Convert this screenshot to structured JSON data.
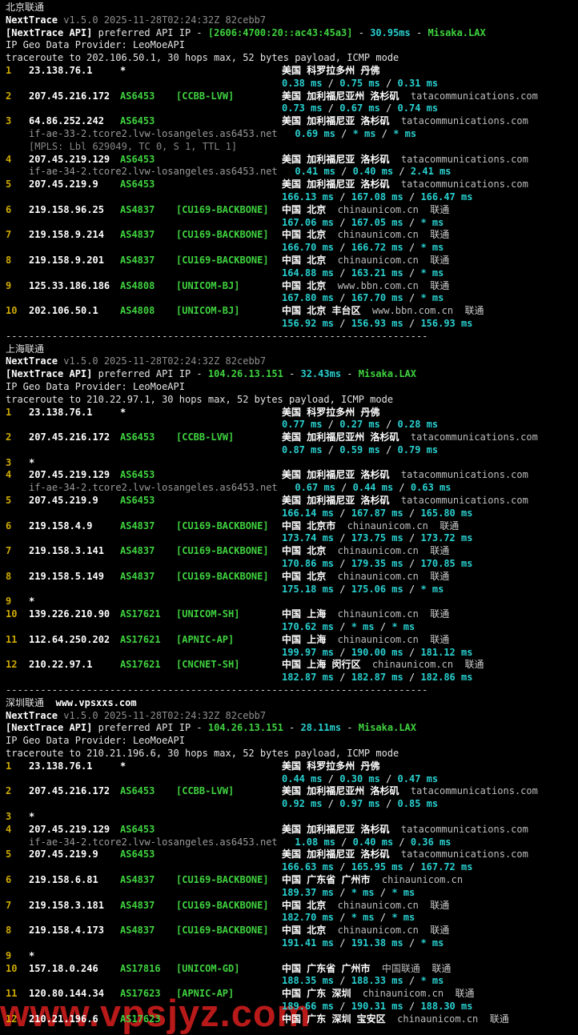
{
  "watermark": {
    "text": "www.vpsjyz.com",
    "color": "#d21d1d"
  },
  "chrome": {
    "separator": "-------------------------------------------------------------------------",
    "background": "#000000"
  },
  "palette": {
    "hop_number_yellow": "#cfaa00",
    "asn_green": "#3fd23f",
    "rtt_cyan": "#29cfcf",
    "text_white": "#ffffff",
    "muted_gray": "#8f8f8f"
  },
  "sections": [
    {
      "title": "北京联通",
      "site": "",
      "app": "NextTrace",
      "version": "v1.5.0 2025-11-28T02:24:32Z 82cebb7",
      "api_tag": "[NextTrace API]",
      "api_text": "preferred API IP",
      "api_ip": "[2606:4700:20::ac43:45a3]",
      "api_latency": "30.95ms",
      "api_node": "Misaka.LAX",
      "geo_provider": "IP Geo Data Provider: LeoMoeAPI",
      "trace": "traceroute to 202.106.50.1, 30 hops max, 52 bytes payload, ICMP mode",
      "separator_after": true,
      "hops": [
        {
          "n": "1",
          "ip": "23.138.76.1",
          "star": true,
          "geo": "美国 科罗拉多州 丹佛",
          "rtt": [
            "0.38 ms",
            "0.75 ms",
            "0.31 ms"
          ]
        },
        {
          "n": "2",
          "ip": "207.45.216.172",
          "as": "AS6453",
          "label": "[CCBB-LVW]",
          "geo": "美国 加利福尼亚州 洛杉矶",
          "host": "tatacommunications.com",
          "rtt": [
            "0.73 ms",
            "0.67 ms",
            "0.74 ms"
          ]
        },
        {
          "n": "3",
          "ip": "64.86.252.242",
          "as": "AS6453",
          "geo": "美国 加利福尼亚 洛杉矶",
          "host": "tatacommunications.com",
          "rdns": "if-ae-33-2.tcore2.lvw-losangeles.as6453.net",
          "rtt": [
            "0.69 ms",
            "* ms",
            "* ms"
          ],
          "mpls": "[MPLS: Lbl 629049, TC 0, S 1, TTL 1]"
        },
        {
          "n": "4",
          "ip": "207.45.219.129",
          "as": "AS6453",
          "geo": "美国 加利福尼亚 洛杉矶",
          "host": "tatacommunications.com",
          "rdns": "if-ae-34-2.tcore2.lvw-losangeles.as6453.net",
          "rtt": [
            "0.41 ms",
            "0.40 ms",
            "2.41 ms"
          ]
        },
        {
          "n": "5",
          "ip": "207.45.219.9",
          "as": "AS6453",
          "geo": "美国 加利福尼亚 洛杉矶",
          "host": "tatacommunications.com",
          "rtt": [
            "166.13 ms",
            "167.08 ms",
            "166.47 ms"
          ]
        },
        {
          "n": "6",
          "ip": "219.158.96.25",
          "as": "AS4837",
          "label": "[CU169-BACKBONE]",
          "geo": "中国 北京",
          "host": "chinaunicom.cn",
          "isp": "联通",
          "rtt": [
            "167.06 ms",
            "167.05 ms",
            "* ms"
          ]
        },
        {
          "n": "7",
          "ip": "219.158.9.214",
          "as": "AS4837",
          "label": "[CU169-BACKBONE]",
          "geo": "中国 北京",
          "host": "chinaunicom.cn",
          "isp": "联通",
          "rtt": [
            "166.70 ms",
            "166.72 ms",
            "* ms"
          ]
        },
        {
          "n": "8",
          "ip": "219.158.9.201",
          "as": "AS4837",
          "label": "[CU169-BACKBONE]",
          "geo": "中国 北京",
          "host": "chinaunicom.cn",
          "isp": "联通",
          "rtt": [
            "164.88 ms",
            "163.21 ms",
            "* ms"
          ]
        },
        {
          "n": "9",
          "ip": "125.33.186.186",
          "as": "AS4808",
          "label": "[UNICOM-BJ]",
          "geo": "中国 北京",
          "host": "www.bbn.com.cn",
          "isp": "联通",
          "rtt": [
            "167.80 ms",
            "167.70 ms",
            "* ms"
          ]
        },
        {
          "n": "10",
          "ip": "202.106.50.1",
          "as": "AS4808",
          "label": "[UNICOM-BJ]",
          "geo": "中国 北京 丰台区",
          "host": "www.bbn.com.cn",
          "isp": "联通",
          "rtt": [
            "156.92 ms",
            "156.93 ms",
            "156.93 ms"
          ]
        }
      ]
    },
    {
      "title": "上海联通",
      "site": "",
      "app": "NextTrace",
      "version": "v1.5.0 2025-11-28T02:24:32Z 82cebb7",
      "api_tag": "[NextTrace API]",
      "api_text": "preferred API IP",
      "api_ip": "104.26.13.151",
      "api_latency": "32.43ms",
      "api_node": "Misaka.LAX",
      "geo_provider": "IP Geo Data Provider: LeoMoeAPI",
      "trace": "traceroute to 210.22.97.1, 30 hops max, 52 bytes payload, ICMP mode",
      "separator_after": true,
      "hops": [
        {
          "n": "1",
          "ip": "23.138.76.1",
          "star": true,
          "geo": "美国 科罗拉多州 丹佛",
          "rtt": [
            "0.77 ms",
            "0.27 ms",
            "0.28 ms"
          ]
        },
        {
          "n": "2",
          "ip": "207.45.216.172",
          "as": "AS6453",
          "label": "[CCBB-LVW]",
          "geo": "美国 加利福尼亚州 洛杉矶",
          "host": "tatacommunications.com",
          "rtt": [
            "0.87 ms",
            "0.59 ms",
            "0.79 ms"
          ]
        },
        {
          "n": "3",
          "star_only": true
        },
        {
          "n": "4",
          "ip": "207.45.219.129",
          "as": "AS6453",
          "geo": "美国 加利福尼亚 洛杉矶",
          "host": "tatacommunications.com",
          "rdns": "if-ae-34-2.tcore2.lvw-losangeles.as6453.net",
          "rtt": [
            "0.67 ms",
            "0.44 ms",
            "0.63 ms"
          ]
        },
        {
          "n": "5",
          "ip": "207.45.219.9",
          "as": "AS6453",
          "geo": "美国 加利福尼亚 洛杉矶",
          "host": "tatacommunications.com",
          "rtt": [
            "166.14 ms",
            "167.87 ms",
            "165.80 ms"
          ]
        },
        {
          "n": "6",
          "ip": "219.158.4.9",
          "as": "AS4837",
          "label": "[CU169-BACKBONE]",
          "geo": "中国 北京市",
          "host": "chinaunicom.cn",
          "isp": "联通",
          "rtt": [
            "173.74 ms",
            "173.75 ms",
            "173.72 ms"
          ]
        },
        {
          "n": "7",
          "ip": "219.158.3.141",
          "as": "AS4837",
          "label": "[CU169-BACKBONE]",
          "geo": "中国 北京",
          "host": "chinaunicom.cn",
          "isp": "联通",
          "rtt": [
            "170.86 ms",
            "179.35 ms",
            "170.85 ms"
          ]
        },
        {
          "n": "8",
          "ip": "219.158.5.149",
          "as": "AS4837",
          "label": "[CU169-BACKBONE]",
          "geo": "中国 北京",
          "host": "chinaunicom.cn",
          "isp": "联通",
          "rtt": [
            "175.18 ms",
            "175.06 ms",
            "* ms"
          ]
        },
        {
          "n": "9",
          "star_only": true
        },
        {
          "n": "10",
          "ip": "139.226.210.90",
          "as": "AS17621",
          "label": "[UNICOM-SH]",
          "geo": "中国 上海",
          "host": "chinaunicom.cn",
          "isp": "联通",
          "rtt": [
            "170.62 ms",
            "* ms",
            "* ms"
          ]
        },
        {
          "n": "11",
          "ip": "112.64.250.202",
          "as": "AS17621",
          "label": "[APNIC-AP]",
          "geo": "中国 上海",
          "host": "chinaunicom.cn",
          "isp": "联通",
          "rtt": [
            "199.97 ms",
            "190.00 ms",
            "181.12 ms"
          ]
        },
        {
          "n": "12",
          "ip": "210.22.97.1",
          "as": "AS17621",
          "label": "[CNCNET-SH]",
          "geo": "中国 上海 闵行区",
          "host": "chinaunicom.cn",
          "isp": "联通",
          "rtt": [
            "182.87 ms",
            "182.87 ms",
            "182.86 ms"
          ]
        }
      ]
    },
    {
      "title": "深圳联通",
      "site": "www.vpsxxs.com",
      "app": "NextTrace",
      "version": "v1.5.0 2025-11-28T02:24:32Z 82cebb7",
      "api_tag": "[NextTrace API]",
      "api_text": "preferred API IP",
      "api_ip": "104.26.13.151",
      "api_latency": "28.11ms",
      "api_node": "Misaka.LAX",
      "geo_provider": "IP Geo Data Provider: LeoMoeAPI",
      "trace": "traceroute to 210.21.196.6, 30 hops max, 52 bytes payload, ICMP mode",
      "separator_after": false,
      "hops": [
        {
          "n": "1",
          "ip": "23.138.76.1",
          "star": true,
          "geo": "美国 科罗拉多州 丹佛",
          "rtt": [
            "0.44 ms",
            "0.30 ms",
            "0.47 ms"
          ]
        },
        {
          "n": "2",
          "ip": "207.45.216.172",
          "as": "AS6453",
          "label": "[CCBB-LVW]",
          "geo": "美国 加利福尼亚州 洛杉矶",
          "host": "tatacommunications.com",
          "rtt": [
            "0.92 ms",
            "0.97 ms",
            "0.85 ms"
          ]
        },
        {
          "n": "3",
          "star_only": true
        },
        {
          "n": "4",
          "ip": "207.45.219.129",
          "as": "AS6453",
          "geo": "美国 加利福尼亚 洛杉矶",
          "host": "tatacommunications.com",
          "rdns": "if-ae-34-2.tcore2.lvw-losangeles.as6453.net",
          "rtt": [
            "1.08 ms",
            "0.40 ms",
            "0.36 ms"
          ]
        },
        {
          "n": "5",
          "ip": "207.45.219.9",
          "as": "AS6453",
          "geo": "美国 加利福尼亚 洛杉矶",
          "host": "tatacommunications.com",
          "rtt": [
            "166.63 ms",
            "165.95 ms",
            "167.72 ms"
          ]
        },
        {
          "n": "6",
          "ip": "219.158.6.81",
          "as": "AS4837",
          "label": "[CU169-BACKBONE]",
          "geo": "中国 广东省 广州市",
          "host": "chinaunicom.cn",
          "rtt": [
            "189.37 ms",
            "* ms",
            "* ms"
          ]
        },
        {
          "n": "7",
          "ip": "219.158.3.181",
          "as": "AS4837",
          "label": "[CU169-BACKBONE]",
          "geo": "中国 北京",
          "host": "chinaunicom.cn",
          "isp": "联通",
          "rtt": [
            "182.70 ms",
            "* ms",
            "* ms"
          ]
        },
        {
          "n": "8",
          "ip": "219.158.4.173",
          "as": "AS4837",
          "label": "[CU169-BACKBONE]",
          "geo": "中国 北京",
          "host": "chinaunicom.cn",
          "isp": "联通",
          "rtt": [
            "191.41 ms",
            "191.38 ms",
            "* ms"
          ]
        },
        {
          "n": "9",
          "star_only": true
        },
        {
          "n": "10",
          "ip": "157.18.0.246",
          "as": "AS17816",
          "label": "[UNICOM-GD]",
          "geo": "中国 广东省 广州市",
          "host": "中国联通",
          "isp": "联通",
          "rtt": [
            "188.35 ms",
            "188.33 ms",
            "* ms"
          ]
        },
        {
          "n": "11",
          "ip": "120.80.144.34",
          "as": "AS17623",
          "label": "[APNIC-AP]",
          "geo": "中国 广东 深圳",
          "host": "chinaunicom.cn",
          "isp": "联通",
          "rtt": [
            "189.66 ms",
            "190.31 ms",
            "188.30 ms"
          ]
        },
        {
          "n": "12",
          "ip": "210.21.196.6",
          "as": "AS17623",
          "geo": "中国 广东 深圳 宝安区",
          "host": "chinaunicom.cn",
          "isp": "联通"
        }
      ]
    }
  ]
}
